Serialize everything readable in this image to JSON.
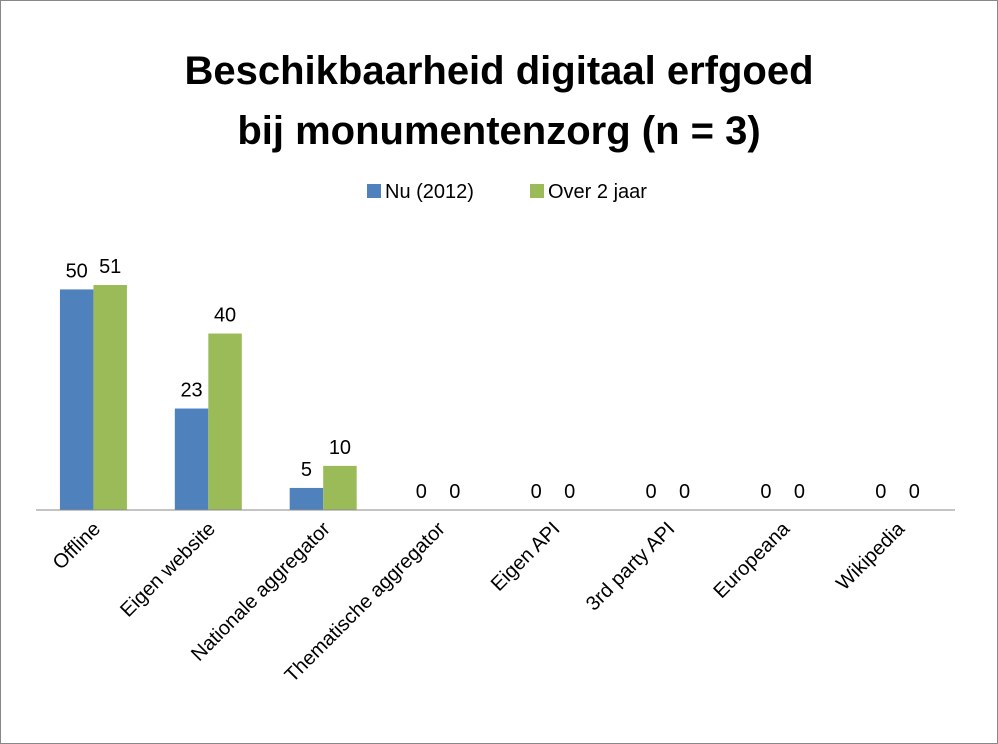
{
  "chart_data": {
    "type": "bar",
    "title": [
      "Beschikbaarheid digitaal erfgoed",
      "bij monumentenzorg (n = 3)"
    ],
    "categories": [
      "Offline",
      "Eigen website",
      "Nationale aggregator",
      "Thematische aggregator",
      "Eigen API",
      "3rd party API",
      "Europeana",
      "Wikipedia"
    ],
    "series": [
      {
        "name": "Nu (2012)",
        "color": "#4f81bd",
        "values": [
          50,
          23,
          5,
          0,
          0,
          0,
          0,
          0
        ]
      },
      {
        "name": "Over 2 jaar",
        "color": "#9bbb59",
        "values": [
          51,
          40,
          10,
          0,
          0,
          0,
          0,
          0
        ]
      }
    ],
    "legend": "top"
  }
}
